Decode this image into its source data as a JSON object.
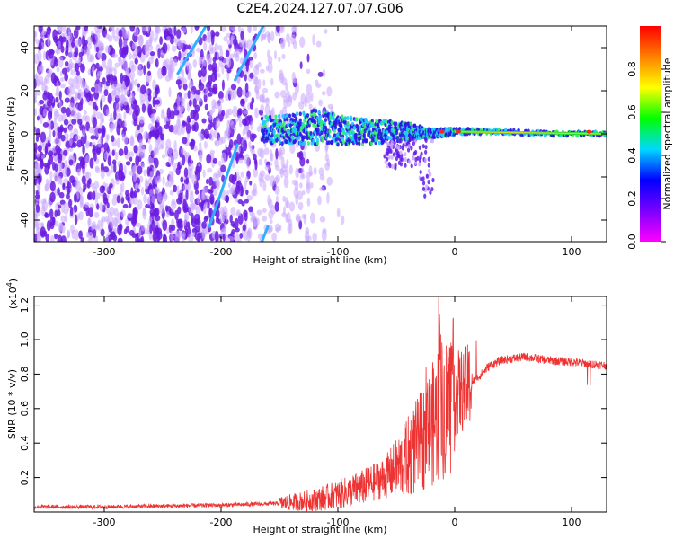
{
  "title": "C2E4.2024.127.07.07.G06",
  "colors": {
    "series": "#ee3333",
    "carrier": "#33dd88",
    "scatter_dense": "#6a1be0",
    "scatter_light": "#c9a6ff",
    "streak": "#2fb0ff"
  },
  "chart_data": [
    {
      "type": "heatmap",
      "title": "",
      "xlabel": "Height of straight line (km)",
      "ylabel": "Frequency (Hz)",
      "xlim": [
        -360,
        130
      ],
      "ylim": [
        -50,
        50
      ],
      "xticks": [
        -300,
        -200,
        -100,
        0,
        100
      ],
      "yticks": [
        -40,
        -20,
        0,
        20,
        40
      ],
      "colorbar": {
        "label": "Normalized spectral amplitude",
        "range": [
          0.0,
          1.0
        ],
        "ticks": [
          "0.0",
          "0.2",
          "0.4",
          "0.6",
          "0.8"
        ],
        "colormap": [
          "#ff00ff",
          "#7a00ff",
          "#0000ff",
          "#00d8ff",
          "#00ff00",
          "#ffff00",
          "#ff8000",
          "#ff0000"
        ]
      },
      "carrier": {
        "x": [
          -165,
          -140,
          -120,
          -100,
          -80,
          -60,
          -40,
          -20,
          0,
          40,
          80,
          130
        ],
        "freq": [
          2,
          2,
          3,
          2,
          1,
          1,
          1,
          0,
          1,
          1,
          0,
          0
        ],
        "halfwidth_hz": [
          6,
          7,
          8,
          7,
          6,
          5,
          4,
          2,
          1.5,
          1,
          1,
          1
        ]
      },
      "streaks": [
        {
          "x": [
            -237,
            -213
          ],
          "freq": [
            28,
            50
          ]
        },
        {
          "x": [
            -188,
            -164
          ],
          "freq": [
            25,
            50
          ]
        },
        {
          "x": [
            -210,
            -186
          ],
          "freq": [
            -43,
            -5
          ]
        },
        {
          "x": [
            -165,
            -160
          ],
          "freq": [
            -50,
            -43
          ]
        }
      ],
      "grid": false
    },
    {
      "type": "line",
      "title": "",
      "xlabel": "Height of straight line (km)",
      "ylabel": "SNR (10 * v/v)",
      "y_scale_label": "(x10",
      "y_scale_exponent": "4",
      "y_scale_suffix": ")",
      "xlim": [
        -360,
        130
      ],
      "ylim": [
        0,
        1.25
      ],
      "xticks": [
        -300,
        -200,
        -100,
        0,
        100
      ],
      "yticks": [
        0.2,
        0.4,
        0.6,
        0.8,
        1.0,
        1.2
      ],
      "series": [
        {
          "x": [
            -360,
            -300,
            -250,
            -200,
            -150,
            -120,
            -100,
            -80,
            -60,
            -50,
            -40,
            -30,
            -20,
            -10,
            0,
            10,
            20,
            30,
            40,
            60,
            80,
            100,
            115,
            130
          ],
          "values": [
            0.03,
            0.03,
            0.035,
            0.04,
            0.05,
            0.07,
            0.1,
            0.14,
            0.2,
            0.25,
            0.32,
            0.4,
            0.5,
            0.6,
            0.68,
            0.72,
            0.78,
            0.85,
            0.88,
            0.9,
            0.88,
            0.87,
            0.86,
            0.85
          ]
        }
      ],
      "grid": false
    }
  ]
}
